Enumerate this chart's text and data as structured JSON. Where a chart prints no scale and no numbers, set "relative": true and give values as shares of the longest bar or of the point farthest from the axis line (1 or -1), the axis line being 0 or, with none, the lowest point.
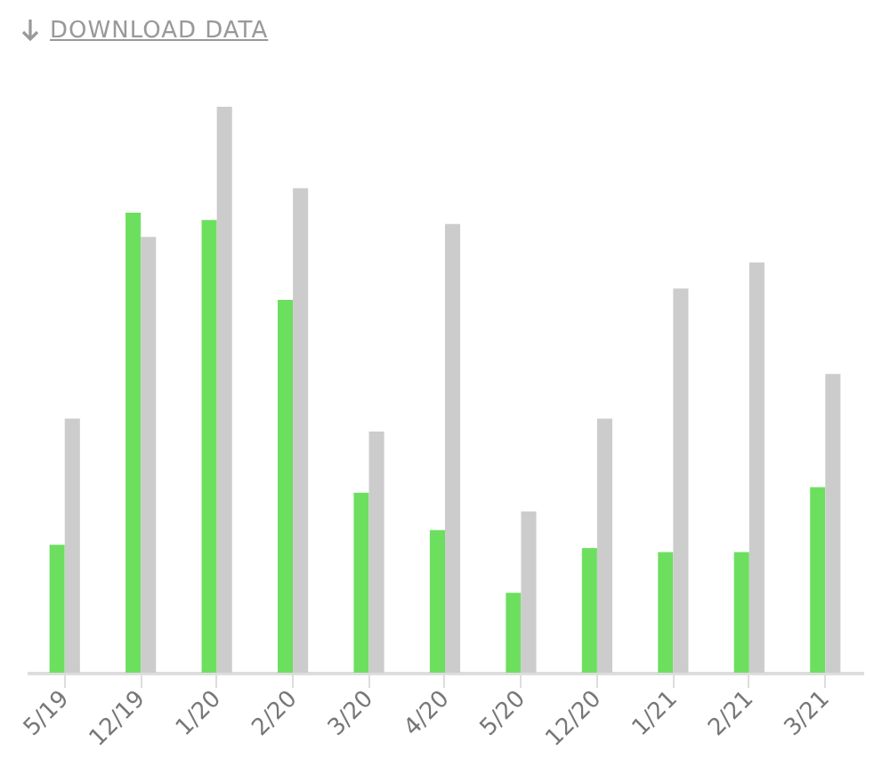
{
  "chart_data": {
    "type": "bar",
    "relative": true,
    "annotations": [
      "DOWNLOAD DATA"
    ],
    "categories": [
      "5/19",
      "12/19",
      "1/20",
      "2/20",
      "3/20",
      "4/20",
      "5/20",
      "12/20",
      "1/21",
      "2/21",
      "3/21"
    ],
    "series": [
      {
        "color": "#6ddf5f",
        "values": [
          0.226,
          0.813,
          0.8,
          0.659,
          0.318,
          0.252,
          0.141,
          0.22,
          0.213,
          0.213,
          0.328
        ]
      },
      {
        "color": "#cccccc",
        "values": [
          0.449,
          0.77,
          1,
          0.856,
          0.426,
          0.793,
          0.285,
          0.449,
          0.679,
          0.725,
          0.528
        ]
      }
    ],
    "legend": false
  }
}
